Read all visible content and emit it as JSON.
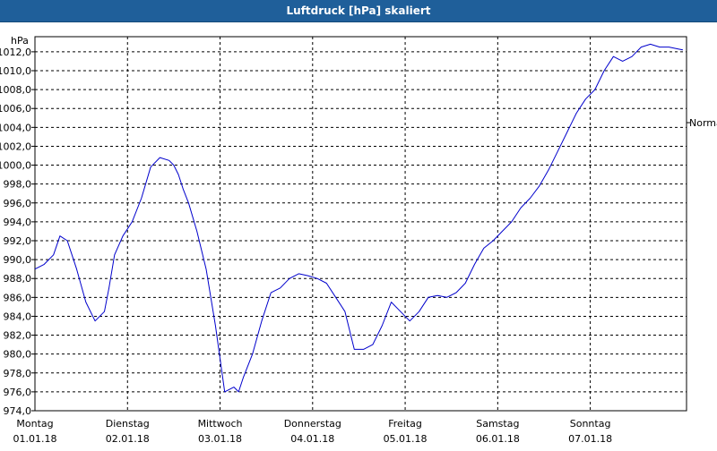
{
  "window": {
    "title": "Luftdruck [hPa] skaliert"
  },
  "chart_data": {
    "type": "line",
    "title": "Luftdruck [hPa] skaliert",
    "ylabel": "hPa",
    "ylim": [
      974.0,
      1013.6
    ],
    "yticks": [
      974.0,
      976.0,
      978.0,
      980.0,
      982.0,
      984.0,
      986.0,
      988.0,
      990.0,
      992.0,
      994.0,
      996.0,
      998.0,
      1000.0,
      1002.0,
      1004.0,
      1006.0,
      1008.0,
      1010.0,
      1012.0
    ],
    "xlim": [
      0,
      7.04
    ],
    "x_ticks": [
      {
        "x": 0,
        "day": "Montag",
        "date": "01.01.18"
      },
      {
        "x": 1,
        "day": "Dienstag",
        "date": "02.01.18"
      },
      {
        "x": 2,
        "day": "Mittwoch",
        "date": "03.01.18"
      },
      {
        "x": 3,
        "day": "Donnerstag",
        "date": "04.01.18"
      },
      {
        "x": 4,
        "day": "Freitag",
        "date": "05.01.18"
      },
      {
        "x": 5,
        "day": "Samstag",
        "date": "06.01.18"
      },
      {
        "x": 6,
        "day": "Sonntag",
        "date": "07.01.18"
      }
    ],
    "reference": {
      "label": "Normal",
      "value": 1004.5
    },
    "grid": true,
    "line_color": "#0000cc",
    "series": [
      {
        "x": [
          0,
          0.1,
          0.2,
          0.27,
          0.35,
          0.45,
          0.55,
          0.65,
          0.75,
          0.8,
          0.86,
          0.95,
          1.05,
          1.15,
          1.25,
          1.35,
          1.45,
          1.5,
          1.55,
          1.6,
          1.66,
          1.75,
          1.85,
          1.95,
          2.05,
          2.15,
          2.2,
          2.25,
          2.35,
          2.45,
          2.55,
          2.65,
          2.75,
          2.85,
          2.95,
          3.05,
          3.15,
          3.25,
          3.35,
          3.45,
          3.55,
          3.65,
          3.75,
          3.85,
          3.95,
          4.05,
          4.15,
          4.25,
          4.35,
          4.45,
          4.55,
          4.65,
          4.75,
          4.85,
          4.95,
          5.05,
          5.15,
          5.25,
          5.35,
          5.45,
          5.55,
          5.65,
          5.75,
          5.85,
          5.95,
          6.05,
          6.15,
          6.25,
          6.35,
          6.45,
          6.55,
          6.65,
          6.75,
          6.85,
          6.95,
          7.0
        ],
        "values": [
          989.0,
          989.5,
          990.5,
          992.5,
          992.0,
          989.0,
          985.5,
          983.5,
          984.5,
          987.0,
          990.5,
          992.5,
          994.0,
          996.5,
          999.8,
          1000.8,
          1000.5,
          1000.0,
          999.0,
          997.5,
          996.0,
          993.0,
          989.0,
          983.0,
          976.0,
          976.5,
          976.0,
          977.5,
          980.0,
          983.5,
          986.5,
          987.0,
          988.0,
          988.5,
          988.3,
          988.0,
          987.5,
          986.0,
          984.5,
          980.5,
          980.5,
          981.0,
          983.0,
          985.5,
          984.5,
          983.5,
          984.5,
          986.0,
          986.2,
          986.0,
          986.5,
          987.5,
          989.5,
          991.2,
          992.0,
          993.0,
          994.0,
          995.5,
          996.5,
          997.8,
          999.5,
          1001.5,
          1003.5,
          1005.5,
          1007.0,
          1008.0,
          1010.0,
          1011.5,
          1011.0,
          1011.5,
          1012.5,
          1012.8,
          1012.5,
          1012.5,
          1012.3,
          1012.2
        ]
      }
    ]
  }
}
